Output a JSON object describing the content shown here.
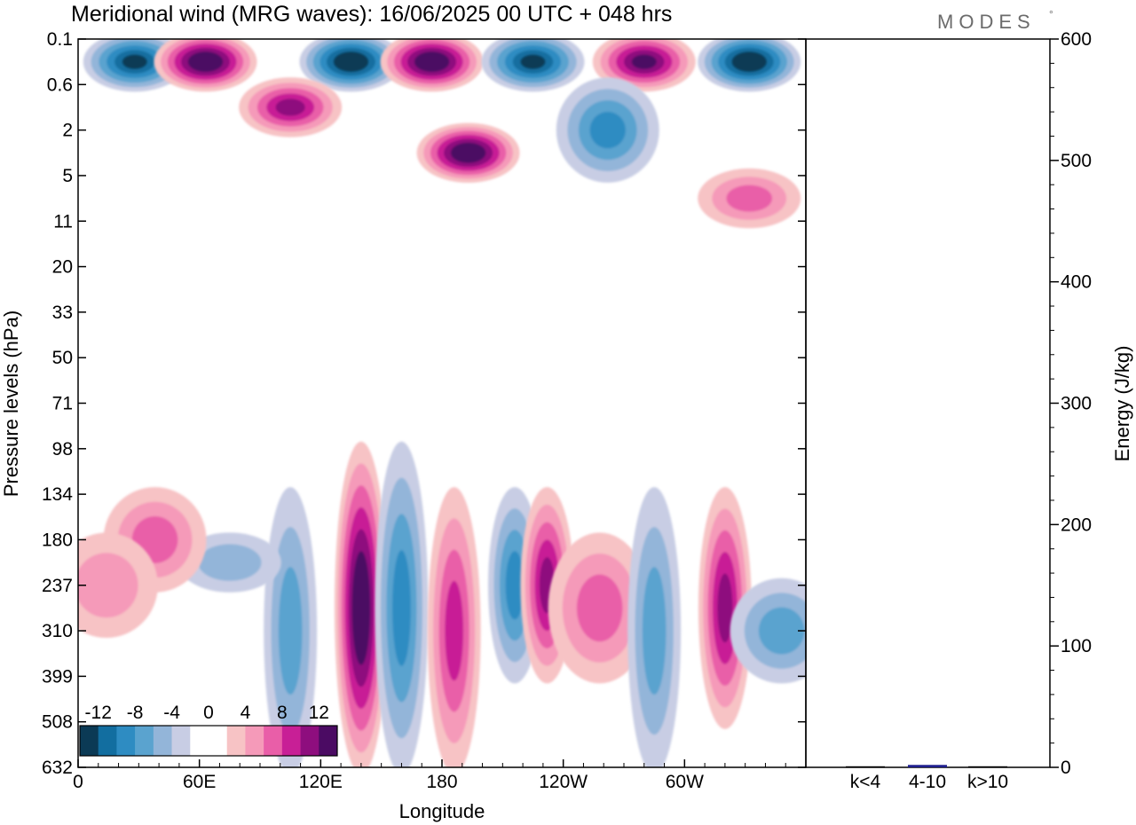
{
  "chart_data": {
    "type": "heatmap",
    "title": "Meridional wind (MRG waves):  16/06/2025  00 UTC  + 048 hrs",
    "brand": "MODES",
    "brand_mark": "°",
    "xlabel": "Longitude",
    "ylabel": "Pressure levels (hPa)",
    "x_tick_labels": [
      "0",
      "60E",
      "120E",
      "180",
      "120W",
      "60W"
    ],
    "x_tick_degrees": [
      0,
      60,
      120,
      180,
      240,
      300
    ],
    "xlim": [
      0,
      360
    ],
    "y_tick_labels": [
      "0.1",
      "0.6",
      "2",
      "5",
      "11",
      "20",
      "33",
      "50",
      "71",
      "98",
      "134",
      "180",
      "237",
      "310",
      "399",
      "508",
      "632"
    ],
    "ylim_hpa": [
      632,
      0.1
    ],
    "colorbar": {
      "tick_labels": [
        "-12",
        "-8",
        "-4",
        "0",
        "4",
        "8",
        "12"
      ],
      "colors": [
        "#0b3a55",
        "#126ea0",
        "#2e8cc2",
        "#5aa3cf",
        "#93b5d9",
        "#c8cde4",
        "#ffffff",
        "#ffffff",
        "#f7c3c5",
        "#f59ab9",
        "#e95ea8",
        "#c81f96",
        "#8e0e7e",
        "#4b0b63"
      ]
    },
    "features": [
      {
        "sign": "positive",
        "lon_center": 140,
        "level_top": "98",
        "level_bottom": "632",
        "peak": 14
      },
      {
        "sign": "negative",
        "lon_center": 160,
        "level_top": "98",
        "level_bottom": "632",
        "peak": -9
      },
      {
        "sign": "positive",
        "lon_center": 186,
        "level_top": "134",
        "level_bottom": "632",
        "peak": 9
      },
      {
        "sign": "negative",
        "lon_center": 216,
        "level_top": "134",
        "level_bottom": "399",
        "peak": -9
      },
      {
        "sign": "positive",
        "lon_center": 232,
        "level_top": "134",
        "level_bottom": "399",
        "peak": 11
      },
      {
        "sign": "positive",
        "lon_center": 258,
        "level_top": "180",
        "level_bottom": "399",
        "peak": 6
      },
      {
        "sign": "negative",
        "lon_center": 285,
        "level_top": "134",
        "level_bottom": "632",
        "peak": -6
      },
      {
        "sign": "positive",
        "lon_center": 320,
        "level_top": "134",
        "level_bottom": "508",
        "peak": 11
      },
      {
        "sign": "negative",
        "lon_center": 348,
        "level_top": "237",
        "level_bottom": "399",
        "peak": -7
      },
      {
        "sign": "negative",
        "lon_center": 105,
        "level_top": "134",
        "level_bottom": "632",
        "peak": -6
      },
      {
        "sign": "negative",
        "lon_center": 75,
        "level_top": "180",
        "level_bottom": "237",
        "peak": -5
      },
      {
        "sign": "positive",
        "lon_center": 38,
        "level_top": "134",
        "level_bottom": "237",
        "peak": 6
      },
      {
        "sign": "positive",
        "lon_center": 14,
        "level_top": "180",
        "level_bottom": "310",
        "peak": 5
      },
      {
        "sign": "negative",
        "lon_center": 28,
        "level_top": "0.1",
        "level_bottom": "0.6",
        "peak": -12
      },
      {
        "sign": "positive",
        "lon_center": 63,
        "level_top": "0.1",
        "level_bottom": "0.6",
        "peak": 14
      },
      {
        "sign": "negative",
        "lon_center": 135,
        "level_top": "0.1",
        "level_bottom": "0.6",
        "peak": -14
      },
      {
        "sign": "positive",
        "lon_center": 175,
        "level_top": "0.1",
        "level_bottom": "0.6",
        "peak": 15
      },
      {
        "sign": "negative",
        "lon_center": 225,
        "level_top": "0.1",
        "level_bottom": "0.6",
        "peak": -12
      },
      {
        "sign": "positive",
        "lon_center": 280,
        "level_top": "0.1",
        "level_bottom": "0.6",
        "peak": 12
      },
      {
        "sign": "negative",
        "lon_center": 332,
        "level_top": "0.1",
        "level_bottom": "0.6",
        "peak": -14
      },
      {
        "sign": "positive",
        "lon_center": 105,
        "level_top": "0.6",
        "level_bottom": "2",
        "peak": 10
      },
      {
        "sign": "positive",
        "lon_center": 193,
        "level_top": "2",
        "level_bottom": "5",
        "peak": 15
      },
      {
        "sign": "negative",
        "lon_center": 262,
        "level_top": "0.6",
        "level_bottom": "5",
        "peak": -8
      },
      {
        "sign": "positive",
        "lon_center": 332,
        "level_top": "5",
        "level_bottom": "11",
        "peak": 6
      }
    ],
    "energy_panel": {
      "ylabel": "Energy (J/kg)",
      "ylim": [
        0,
        600
      ],
      "y_tick_labels": [
        "0",
        "100",
        "200",
        "300",
        "400",
        "500",
        "600"
      ],
      "categories": [
        "k<4",
        "4-10",
        "k>10"
      ],
      "values": [
        0,
        2,
        0
      ],
      "bar_color": "#1f1f8f"
    }
  }
}
